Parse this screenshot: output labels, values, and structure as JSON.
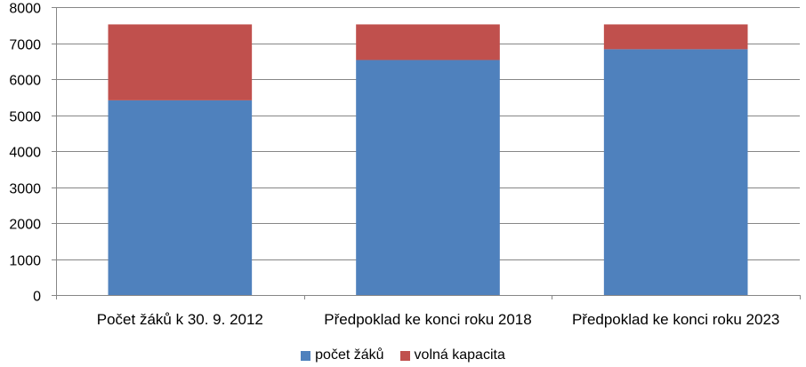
{
  "chart_data": {
    "type": "bar",
    "stacked": true,
    "categories": [
      "Počet žáků k 30. 9. 2012",
      "Předpoklad ke konci roku 2018",
      "Předpoklad ke konci roku 2023"
    ],
    "series": [
      {
        "name": "počet žáků",
        "color": "#4f81bd",
        "values": [
          5410,
          6530,
          6830
        ]
      },
      {
        "name": "volná kapacita",
        "color": "#c0504d",
        "values": [
          2110,
          990,
          690
        ]
      }
    ],
    "ylim": [
      0,
      8000
    ],
    "yticks": [
      0,
      1000,
      2000,
      3000,
      4000,
      5000,
      6000,
      7000,
      8000
    ],
    "grid": true,
    "legend": "bottom",
    "title": "",
    "xlabel": "",
    "ylabel": ""
  }
}
